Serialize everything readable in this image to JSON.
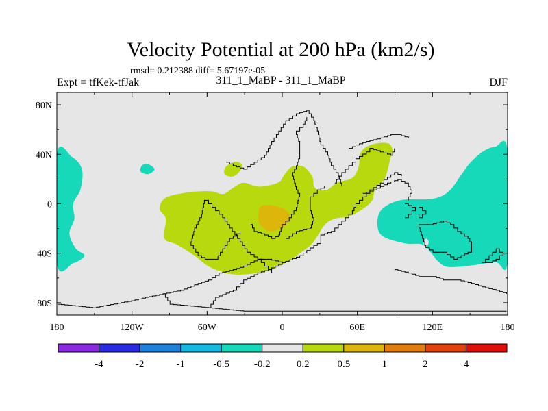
{
  "chart_data": {
    "type": "heatmap",
    "title": "Velocity Potential at 200 hPa (km2/s)",
    "stats_text": "rmsd= 0.212388 diff= 5.67197e-05",
    "left_label": "Expt = tfKek-tfJak",
    "center_label": "311_1_MaBP - 311_1_MaBP",
    "right_label": "DJF",
    "x_ticks": [
      {
        "value": -180,
        "label": "180"
      },
      {
        "value": -120,
        "label": "120W"
      },
      {
        "value": -60,
        "label": "60W"
      },
      {
        "value": 0,
        "label": "0"
      },
      {
        "value": 60,
        "label": "60E"
      },
      {
        "value": 120,
        "label": "120E"
      },
      {
        "value": 180,
        "label": "180"
      }
    ],
    "y_ticks": [
      {
        "value": 80,
        "label": "80N"
      },
      {
        "value": 40,
        "label": "40N"
      },
      {
        "value": 0,
        "label": "0"
      },
      {
        "value": -40,
        "label": "40S"
      },
      {
        "value": -80,
        "label": "80S"
      }
    ],
    "xlim": [
      -180,
      180
    ],
    "ylim": [
      -90,
      90
    ],
    "grid": false,
    "colorbar": {
      "colors": [
        "#8a2be2",
        "#2a2ae0",
        "#1e82dc",
        "#16b9df",
        "#15d9b9",
        "#e6e6e6",
        "#b9d90f",
        "#ddb60c",
        "#e07d0c",
        "#e2420c",
        "#e00d0d"
      ],
      "labels": [
        "-4",
        "-2",
        "-1",
        "-0.5",
        "-0.2",
        "0.2",
        "0.5",
        "1",
        "2",
        "4"
      ]
    },
    "background_color": "#e6e6e6",
    "regions": [
      {
        "level": "-0.2 to -0.5",
        "color": "#15d9b9",
        "points": [
          [
            -180,
            40
          ],
          [
            -168,
            38
          ],
          [
            -160,
            28
          ],
          [
            -161,
            12
          ],
          [
            -167,
            0
          ],
          [
            -166,
            -12
          ],
          [
            -170,
            -24
          ],
          [
            -165,
            -36
          ],
          [
            -158,
            -42
          ],
          [
            -167,
            -48
          ],
          [
            -180,
            -48
          ]
        ]
      },
      {
        "level": "-0.2 to -0.5",
        "color": "#15d9b9",
        "points": [
          [
            180,
            43
          ],
          [
            170,
            46
          ],
          [
            160,
            42
          ],
          [
            150,
            33
          ],
          [
            142,
            22
          ],
          [
            133,
            10
          ],
          [
            120,
            4
          ],
          [
            95,
            3
          ],
          [
            80,
            -4
          ],
          [
            76,
            -15
          ],
          [
            80,
            -26
          ],
          [
            98,
            -32
          ],
          [
            112,
            -33
          ],
          [
            120,
            -41
          ],
          [
            124,
            -46
          ],
          [
            132,
            -51
          ],
          [
            150,
            -50
          ],
          [
            170,
            -47
          ],
          [
            180,
            -47
          ]
        ]
      },
      {
        "level": "0.2 to 0.5",
        "color": "#b9d90f",
        "points": [
          [
            -93,
            5
          ],
          [
            -98,
            -4
          ],
          [
            -93,
            -12
          ],
          [
            -94,
            -28
          ],
          [
            -84,
            -33
          ],
          [
            -70,
            -42
          ],
          [
            -58,
            -51
          ],
          [
            -40,
            -57
          ],
          [
            -20,
            -56
          ],
          [
            -6,
            -52
          ],
          [
            4,
            -47
          ],
          [
            14,
            -40
          ],
          [
            24,
            -32
          ],
          [
            34,
            -17
          ],
          [
            42,
            -12
          ],
          [
            54,
            -10
          ],
          [
            66,
            -3
          ],
          [
            72,
            3
          ],
          [
            74,
            11
          ],
          [
            80,
            18
          ],
          [
            83,
            23
          ],
          [
            86,
            35
          ],
          [
            88,
            44
          ],
          [
            84,
            49
          ],
          [
            72,
            48
          ],
          [
            63,
            42
          ],
          [
            61,
            30
          ],
          [
            56,
            21
          ],
          [
            44,
            17
          ],
          [
            35,
            11
          ],
          [
            26,
            13
          ],
          [
            24,
            22
          ],
          [
            17,
            30
          ],
          [
            8,
            30
          ],
          [
            2,
            24
          ],
          [
            -2,
            18
          ],
          [
            -10,
            15
          ],
          [
            -20,
            14
          ],
          [
            -31,
            17
          ],
          [
            -39,
            13
          ],
          [
            -47,
            8
          ],
          [
            -56,
            10
          ],
          [
            -66,
            10
          ],
          [
            -77,
            9
          ]
        ]
      },
      {
        "level": "0.2 to 0.5",
        "color": "#b9d90f",
        "points": [
          [
            -35,
            25
          ],
          [
            -32,
            31
          ],
          [
            -37,
            34
          ],
          [
            -45,
            30
          ],
          [
            -46,
            24
          ],
          [
            -40,
            22
          ]
        ]
      },
      {
        "level": "0.5 to 1",
        "color": "#ddb60c",
        "points": [
          [
            -17,
            -2
          ],
          [
            -9,
            -1
          ],
          [
            3,
            -5
          ],
          [
            6,
            -12
          ],
          [
            -1,
            -20
          ],
          [
            -11,
            -22
          ],
          [
            -18,
            -16
          ],
          [
            -19,
            -9
          ]
        ]
      },
      {
        "level": "-0.2 to -0.5",
        "color": "#15d9b9",
        "points": [
          [
            -107,
            32
          ],
          [
            -102,
            28
          ],
          [
            -107,
            24
          ],
          [
            -113,
            26
          ],
          [
            -112,
            31
          ]
        ]
      },
      {
        "level": "0.2 to -0.2",
        "color": "#e6e6e6",
        "points": [
          [
            115,
            -28
          ],
          [
            117,
            -31
          ],
          [
            115,
            -35
          ],
          [
            113,
            -32
          ]
        ]
      }
    ],
    "coastlines": [
      [
        [
          -180,
          -82
        ],
        [
          -150,
          -83
        ],
        [
          -120,
          -79
        ],
        [
          -110,
          -76
        ],
        [
          -95,
          -74
        ],
        [
          -80,
          -69
        ],
        [
          -68,
          -64
        ],
        [
          -58,
          -62
        ],
        [
          -50,
          -57
        ],
        [
          -40,
          -54
        ],
        [
          -30,
          -50
        ],
        [
          -20,
          -46
        ],
        [
          -10,
          -44
        ],
        [
          0,
          -47
        ],
        [
          15,
          -42
        ],
        [
          25,
          -35
        ],
        [
          30,
          -30
        ],
        [
          32,
          -26
        ],
        [
          40,
          -22
        ],
        [
          45,
          -17
        ],
        [
          50,
          -12
        ],
        [
          56,
          -7
        ],
        [
          60,
          -1
        ],
        [
          65,
          5
        ],
        [
          70,
          12
        ],
        [
          78,
          18
        ],
        [
          82,
          20
        ],
        [
          90,
          25
        ],
        [
          95,
          22
        ]
      ],
      [
        [
          -95,
          -74
        ],
        [
          -90,
          -82
        ],
        [
          -60,
          -84
        ],
        [
          -30,
          -87
        ],
        [
          0,
          -88
        ],
        [
          30,
          -88
        ],
        [
          60,
          -87
        ],
        [
          90,
          -87
        ],
        [
          120,
          -87
        ],
        [
          150,
          -87
        ],
        [
          180,
          -86
        ]
      ],
      [
        [
          -60,
          -84
        ],
        [
          -52,
          -77
        ],
        [
          -40,
          -70
        ],
        [
          -30,
          -62
        ],
        [
          -20,
          -55
        ],
        [
          -10,
          -52
        ],
        [
          0,
          -47
        ]
      ],
      [
        [
          -46,
          33
        ],
        [
          -40,
          30
        ],
        [
          -30,
          28
        ],
        [
          -22,
          33
        ],
        [
          -14,
          40
        ],
        [
          -8,
          50
        ],
        [
          -2,
          58
        ],
        [
          4,
          66
        ],
        [
          11,
          72
        ],
        [
          19,
          75
        ],
        [
          25,
          68
        ],
        [
          29,
          58
        ],
        [
          32,
          48
        ],
        [
          36,
          40
        ],
        [
          40,
          30
        ],
        [
          44,
          21
        ],
        [
          48,
          14
        ]
      ],
      [
        [
          -25,
          -17
        ],
        [
          -21,
          -22
        ],
        [
          -15,
          -26
        ],
        [
          -8,
          -28
        ],
        [
          -3,
          -24
        ],
        [
          0,
          -18
        ],
        [
          5,
          -10
        ],
        [
          10,
          -2
        ],
        [
          13,
          8
        ],
        [
          10,
          15
        ],
        [
          8,
          24
        ],
        [
          10,
          31
        ],
        [
          14,
          40
        ],
        [
          14,
          50
        ],
        [
          12,
          58
        ],
        [
          16,
          64
        ],
        [
          19,
          69
        ]
      ],
      [
        [
          -61,
          2
        ],
        [
          -55,
          -4
        ],
        [
          -48,
          -12
        ],
        [
          -41,
          -20
        ],
        [
          -33,
          -30
        ],
        [
          -27,
          -40
        ],
        [
          -19,
          -46
        ],
        [
          -13,
          -51
        ],
        [
          -9,
          -55
        ]
      ],
      [
        [
          -61,
          2
        ],
        [
          -64,
          -10
        ],
        [
          -69,
          -22
        ],
        [
          -72,
          -34
        ],
        [
          -68,
          -42
        ],
        [
          -62,
          -46
        ],
        [
          -54,
          -44
        ],
        [
          -48,
          -36
        ],
        [
          -41,
          -28
        ],
        [
          -35,
          -22
        ]
      ],
      [
        [
          4,
          -28
        ],
        [
          12,
          -22
        ],
        [
          21,
          -20
        ],
        [
          24,
          -12
        ],
        [
          21,
          -4
        ],
        [
          23,
          5
        ],
        [
          28,
          11
        ],
        [
          33,
          13
        ]
      ],
      [
        [
          41,
          17
        ],
        [
          44,
          22
        ],
        [
          48,
          26
        ],
        [
          54,
          32
        ],
        [
          60,
          37
        ],
        [
          67,
          43
        ],
        [
          70,
          46
        ],
        [
          77,
          43
        ],
        [
          86,
          39
        ],
        [
          89,
          44
        ]
      ],
      [
        [
          52,
          46
        ],
        [
          60,
          48
        ],
        [
          68,
          50
        ],
        [
          77,
          53
        ],
        [
          86,
          56
        ],
        [
          92,
          55
        ],
        [
          100,
          53
        ]
      ],
      [
        [
          65,
          8
        ],
        [
          72,
          12
        ],
        [
          78,
          15
        ],
        [
          84,
          17
        ],
        [
          92,
          20
        ],
        [
          98,
          17
        ],
        [
          102,
          13
        ],
        [
          104,
          8
        ],
        [
          102,
          3
        ]
      ],
      [
        [
          98,
          1
        ],
        [
          103,
          -2
        ],
        [
          106,
          -6
        ],
        [
          102,
          -10
        ],
        [
          99,
          -12
        ]
      ],
      [
        [
          108,
          -3
        ],
        [
          112,
          -6
        ],
        [
          116,
          -8
        ],
        [
          112,
          -10
        ],
        [
          108,
          -8
        ]
      ],
      [
        [
          110,
          -16
        ],
        [
          118,
          -18
        ],
        [
          128,
          -15
        ],
        [
          135,
          -18
        ],
        [
          140,
          -22
        ],
        [
          148,
          -28
        ],
        [
          152,
          -33
        ],
        [
          150,
          -39
        ],
        [
          140,
          -44
        ],
        [
          132,
          -40
        ],
        [
          123,
          -38
        ],
        [
          114,
          -35
        ],
        [
          112,
          -26
        ],
        [
          110,
          -16
        ]
      ],
      [
        [
          160,
          -48
        ],
        [
          166,
          -43
        ],
        [
          172,
          -37
        ],
        [
          176,
          -41
        ],
        [
          174,
          -45
        ],
        [
          168,
          -48
        ],
        [
          160,
          -48
        ]
      ],
      [
        [
          90,
          -52
        ],
        [
          100,
          -55
        ],
        [
          110,
          -58
        ],
        [
          120,
          -60
        ],
        [
          130,
          -62
        ],
        [
          140,
          -63
        ],
        [
          150,
          -64
        ],
        [
          160,
          -67
        ],
        [
          170,
          -70
        ],
        [
          180,
          -74
        ]
      ]
    ]
  }
}
